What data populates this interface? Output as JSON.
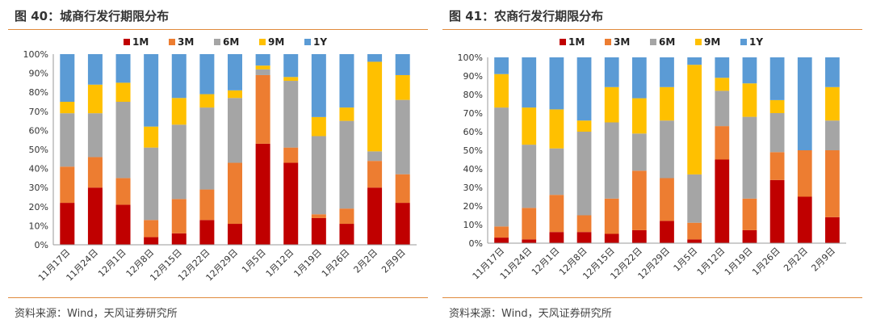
{
  "colors": {
    "1M": "#c00000",
    "3M": "#ed7d31",
    "6M": "#a5a5a5",
    "9M": "#ffc000",
    "1Y": "#5b9bd5",
    "rule": "#e08a3c"
  },
  "charts": [
    {
      "title": "图 40：城商行发行期限分布",
      "source": "资料来源：Wind，天风证券研究所",
      "chart_data": {
        "type": "bar",
        "stacked": true,
        "categories": [
          "11月17日",
          "11月24日",
          "12月1日",
          "12月8日",
          "12月15日",
          "12月22日",
          "12月29日",
          "1月5日",
          "1月12日",
          "1月19日",
          "1月26日",
          "2月2日",
          "2月9日"
        ],
        "y_ticks": [
          "0%",
          "10%",
          "20%",
          "30%",
          "40%",
          "50%",
          "60%",
          "70%",
          "80%",
          "90%",
          "100%"
        ],
        "ylim": [
          0,
          100
        ],
        "legend_position": "top",
        "series": [
          {
            "name": "1M",
            "values": [
              22,
              30,
              21,
              4,
              6,
              13,
              11,
              53,
              43,
              14,
              11,
              30,
              22
            ]
          },
          {
            "name": "3M",
            "values": [
              19,
              16,
              14,
              9,
              18,
              16,
              32,
              36,
              8,
              2,
              8,
              14,
              15
            ]
          },
          {
            "name": "6M",
            "values": [
              28,
              23,
              40,
              38,
              39,
              43,
              34,
              3,
              35,
              41,
              46,
              5,
              39
            ]
          },
          {
            "name": "9M",
            "values": [
              6,
              15,
              10,
              11,
              14,
              7,
              4,
              2,
              2,
              10,
              7,
              47,
              13
            ]
          },
          {
            "name": "1Y",
            "values": [
              25,
              16,
              15,
              38,
              23,
              21,
              19,
              6,
              12,
              33,
              28,
              4,
              11
            ]
          }
        ]
      }
    },
    {
      "title": "图 41：农商行发行期限分布",
      "source": "资料来源：Wind，天风证券研究所",
      "chart_data": {
        "type": "bar",
        "stacked": true,
        "categories": [
          "11月17日",
          "11月24日",
          "12月1日",
          "12月8日",
          "12月15日",
          "12月22日",
          "12月29日",
          "1月5日",
          "1月12日",
          "1月19日",
          "1月26日",
          "2月2日",
          "2月9日"
        ],
        "y_ticks": [
          "0%",
          "10%",
          "20%",
          "30%",
          "40%",
          "50%",
          "60%",
          "70%",
          "80%",
          "90%",
          "100%"
        ],
        "ylim": [
          0,
          100
        ],
        "legend_position": "top",
        "series": [
          {
            "name": "1M",
            "values": [
              3,
              2,
              6,
              6,
              5,
              7,
              12,
              2,
              45,
              7,
              34,
              25,
              14
            ]
          },
          {
            "name": "3M",
            "values": [
              6,
              17,
              20,
              9,
              19,
              32,
              23,
              9,
              18,
              17,
              15,
              25,
              36
            ]
          },
          {
            "name": "6M",
            "values": [
              64,
              34,
              25,
              45,
              41,
              20,
              31,
              26,
              19,
              44,
              21,
              0,
              16
            ]
          },
          {
            "name": "9M",
            "values": [
              18,
              20,
              21,
              6,
              19,
              19,
              18,
              59,
              7,
              18,
              7,
              0,
              18
            ]
          },
          {
            "name": "1Y",
            "values": [
              9,
              27,
              28,
              34,
              16,
              22,
              16,
              4,
              11,
              14,
              23,
              50,
              16
            ]
          }
        ]
      }
    }
  ]
}
